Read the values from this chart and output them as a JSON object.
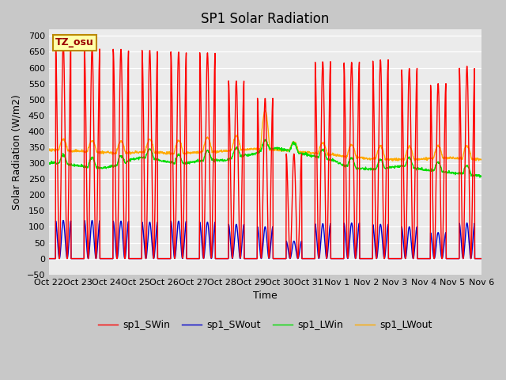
{
  "title": "SP1 Solar Radiation",
  "ylabel": "Solar Radiation (W/m2)",
  "xlabel": "Time",
  "ylim": [
    -50,
    720
  ],
  "yticks": [
    -50,
    0,
    50,
    100,
    150,
    200,
    250,
    300,
    350,
    400,
    450,
    500,
    550,
    600,
    650,
    700
  ],
  "annotation": "TZ_osu",
  "colors": {
    "SWin": "#ff0000",
    "SWout": "#0000cc",
    "LWin": "#00dd00",
    "LWout": "#ffaa00"
  },
  "legend_labels": [
    "sp1_SWin",
    "sp1_SWout",
    "sp1_LWin",
    "sp1_LWout"
  ],
  "xtick_labels": [
    "Oct 22",
    "Oct 23",
    "Oct 24",
    "Oct 25",
    "Oct 26",
    "Oct 27",
    "Oct 28",
    "Oct 29",
    "Oct 30",
    "Oct 31",
    "Nov 1",
    "Nov 2",
    "Nov 3",
    "Nov 4",
    "Nov 5",
    "Nov 6"
  ],
  "num_days": 15,
  "fig_bg": "#c8c8c8",
  "plot_bg": "#ebebeb"
}
